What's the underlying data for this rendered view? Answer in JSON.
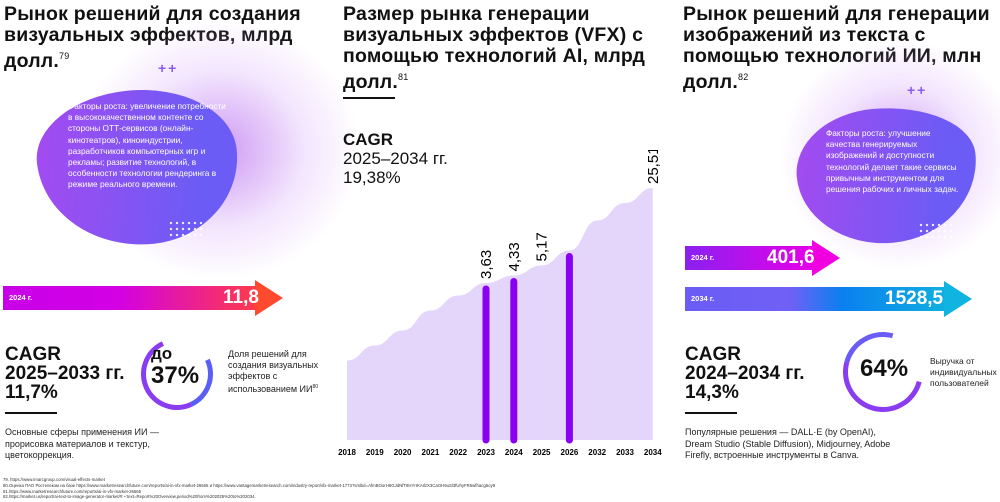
{
  "left": {
    "title": "Рынок решений для создания визуальных эффектов, млрд долл.",
    "title_ref": "79",
    "growth_factors": "Факторы роста: увеличение потребности в высококачественном контенте со стороны ОТТ-сервисов (онлайн-кинотеатров), киноиндустрии, разработчиков компьютерных игр и рекламы; развитие технологий, в особенности технологии рендеринга в режиме реального времени.",
    "arrow": {
      "year": "2024 г.",
      "value": "11,8"
    },
    "cagr": {
      "label": "CAGR",
      "period": "2025–2033 гг.",
      "value": "11,7%"
    },
    "share": {
      "prefix": "до",
      "value": "37%",
      "caption": "Доля решений для создания визуальных эффектов с использованием ИИ",
      "caption_ref": "80"
    },
    "note": "Основные сферы применения ИИ — прорисовка материалов и текстур, цветокоррекция."
  },
  "middle": {
    "title": "Размер рынка генерации визуальных эффектов (VFX) с помощью технологий AI, млрд долл.",
    "title_ref": "81",
    "cagr": {
      "label": "CAGR",
      "period": "2025–2034 гг.",
      "value": "19,38%"
    }
  },
  "right": {
    "title": "Рынок решений для генерации изображений из текста с помощью технологий ИИ, млн долл.",
    "title_ref": "82",
    "growth_factors": "Факторы роста: улучшение качества генерируемых изображений и доступности технологий делает такие сервисы привычным инструментом для решения рабочих и личных задач.",
    "arrows": [
      {
        "year": "2024 г.",
        "value": "401,6"
      },
      {
        "year": "2034 г.",
        "value": "1528,5"
      }
    ],
    "cagr": {
      "label": "CAGR",
      "period": "2024–2034 гг.",
      "value": "14,3%"
    },
    "share": {
      "value": "64%",
      "caption": "Выручка от индивидуальных пользователей"
    },
    "note": "Популярные решения — DALL·E (by OpenAI), Dream Studio (Stable Diffusion), Midjourney, Adobe Firefly, встроенные инструменты в Canva."
  },
  "footnotes": [
    "79. https://www.imarcgroup.com/visual-effects-market",
    "80.Оценка ПАО Ростелеком на базе https://www.marketresearchfuture.com/reports/ai-in-vfx-market-26565 и https://www.vantagemarketresearch.com/industry-report/vfx-market-1773?srsltid=AfmBOorH6GJdNfT8HYrIKAIlzX3CaOH9uSl3fUhyFR5wfhacg6oy9",
    "81.https://www.marketresearchfuture.com/reports/ai-in-vfx-market-26565",
    "82.https://market.us/report/ai-text-to-image-generator-market/#:~:text=Report%20Overview,period%20from%202025%20to%202034."
  ],
  "chart_data": {
    "type": "bar",
    "title": "Размер рынка генерации визуальных эффектов (VFX) с помощью технологий AI, млрд долл.",
    "categories": [
      "2018",
      "2019",
      "2020",
      "2021",
      "2022",
      "2023",
      "2024",
      "2025",
      "2026",
      "2032",
      "2033",
      "2034"
    ],
    "values": [
      null,
      null,
      null,
      null,
      null,
      3.63,
      4.33,
      5.17,
      null,
      null,
      null,
      25.51
    ],
    "value_labels": [
      "",
      "",
      "",
      "",
      "",
      "3,63",
      "4,33",
      "5,17",
      "",
      "",
      "",
      "25,51"
    ],
    "visual_level": [
      0.31,
      0.37,
      0.43,
      0.51,
      0.57,
      0.62,
      0.65,
      0.69,
      0.75,
      0.87,
      0.94,
      1.0
    ],
    "bar_colors": [
      "#6c6cf7",
      "#6c6cf7",
      "#6c6cf7",
      "#6c6cf7",
      "#6c6cf7",
      "#8a00f0",
      "#8a00f0",
      "#6c6cf7",
      "#8a00f0",
      "#6c6cf7",
      "#6c6cf7",
      "#6c6cf7"
    ],
    "xlabel": "",
    "ylabel": "",
    "grid": false
  }
}
